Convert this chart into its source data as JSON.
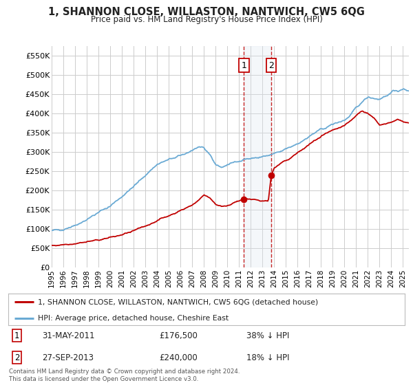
{
  "title": "1, SHANNON CLOSE, WILLASTON, NANTWICH, CW5 6QG",
  "subtitle": "Price paid vs. HM Land Registry's House Price Index (HPI)",
  "ylim": [
    0,
    575000
  ],
  "yticks": [
    0,
    50000,
    100000,
    150000,
    200000,
    250000,
    300000,
    350000,
    400000,
    450000,
    500000,
    550000
  ],
  "ytick_labels": [
    "£0",
    "£50K",
    "£100K",
    "£150K",
    "£200K",
    "£250K",
    "£300K",
    "£350K",
    "£400K",
    "£450K",
    "£500K",
    "£550K"
  ],
  "sale1_date_num": 2011.42,
  "sale1_price": 176500,
  "sale1_label": "1",
  "sale1_date_str": "31-MAY-2011",
  "sale1_price_str": "£176,500",
  "sale1_hpi_str": "38% ↓ HPI",
  "sale2_date_num": 2013.75,
  "sale2_price": 240000,
  "sale2_label": "2",
  "sale2_date_str": "27-SEP-2013",
  "sale2_price_str": "£240,000",
  "sale2_hpi_str": "18% ↓ HPI",
  "hpi_color": "#6aaad4",
  "sale_color": "#c00000",
  "shade_color": "#dce6f1",
  "legend_label_sale": "1, SHANNON CLOSE, WILLASTON, NANTWICH, CW5 6QG (detached house)",
  "legend_label_hpi": "HPI: Average price, detached house, Cheshire East",
  "footnote": "Contains HM Land Registry data © Crown copyright and database right 2024.\nThis data is licensed under the Open Government Licence v3.0.",
  "background_color": "#ffffff",
  "grid_color": "#cccccc",
  "xlim_left": 1995,
  "xlim_right": 2025.5
}
